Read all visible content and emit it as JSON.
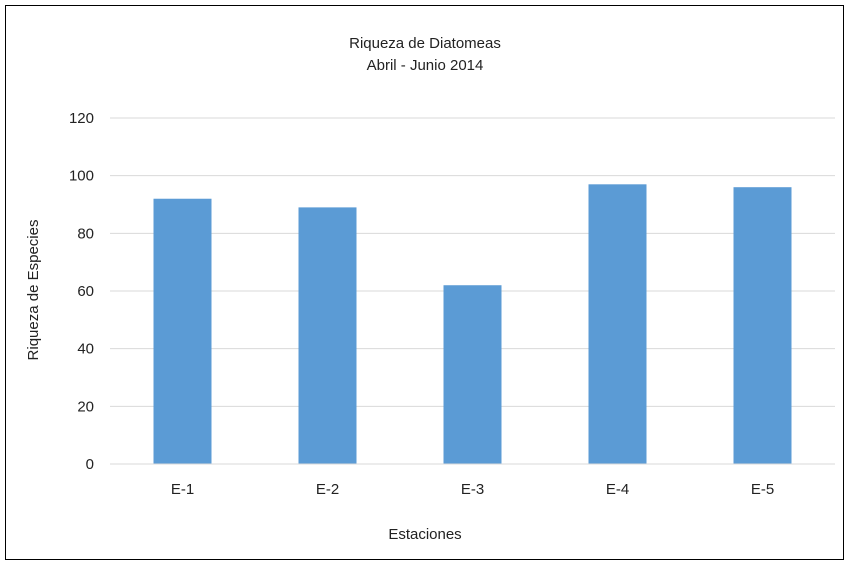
{
  "chart_data": {
    "type": "bar",
    "title": "Riqueza de Diatomeas",
    "subtitle": "Abril - Junio 2014",
    "xlabel": "Estaciones",
    "ylabel": "Riqueza de Especies",
    "categories": [
      "E-1",
      "E-2",
      "E-3",
      "E-4",
      "E-5"
    ],
    "values": [
      92,
      89,
      62,
      97,
      96
    ],
    "ylim": [
      0,
      120
    ],
    "yticks": [
      "0",
      "20",
      "40",
      "60",
      "80",
      "100",
      "120"
    ],
    "grid": true,
    "legend": "none",
    "bar_color": "#5b9bd5",
    "grid_color": "#d9d9d9"
  }
}
